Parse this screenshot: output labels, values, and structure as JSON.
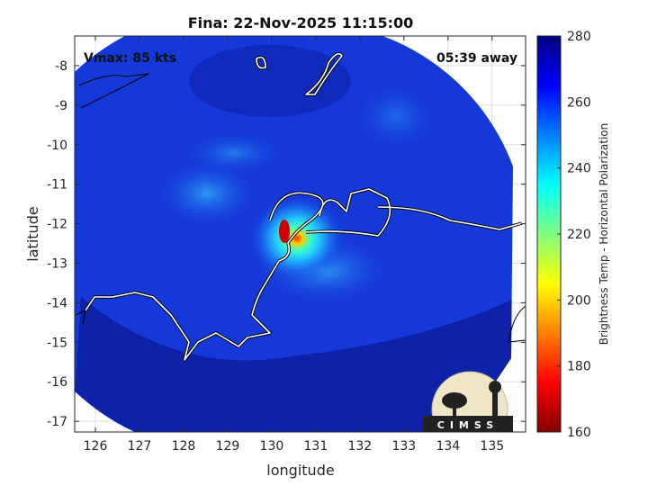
{
  "title": "Fina: 22-Nov-2025 11:15:00",
  "vmax_label": "Vmax: 85 kts",
  "away_label": "05:39 away",
  "chart_data": {
    "type": "heatmap",
    "title": "Fina: 22-Nov-2025 11:15:00",
    "xlabel": "longitude",
    "ylabel": "latitude",
    "xlim": [
      125.53,
      135.76
    ],
    "ylim": [
      -17.27,
      -7.25
    ],
    "xticks": [
      126,
      127,
      128,
      129,
      130,
      131,
      132,
      133,
      134,
      135
    ],
    "yticks": [
      -8,
      -9,
      -10,
      -11,
      -12,
      -13,
      -14,
      -15,
      -16,
      -17
    ],
    "grid": true,
    "colorbar": {
      "label": "Brightness Temp - Horizontal Polarization",
      "range": [
        160,
        280
      ],
      "ticks": [
        160,
        180,
        200,
        220,
        240,
        260,
        280
      ],
      "colormap": "jet"
    },
    "storm_center": {
      "lon": 130.3,
      "lat": -12.2
    },
    "min_temp_approx": 170
  },
  "logo": {
    "text": "CIMSS"
  },
  "colors": {
    "background_swath": "#1538d8",
    "outer_swath": "#0c1fa0",
    "coastline": "#ffffff"
  }
}
